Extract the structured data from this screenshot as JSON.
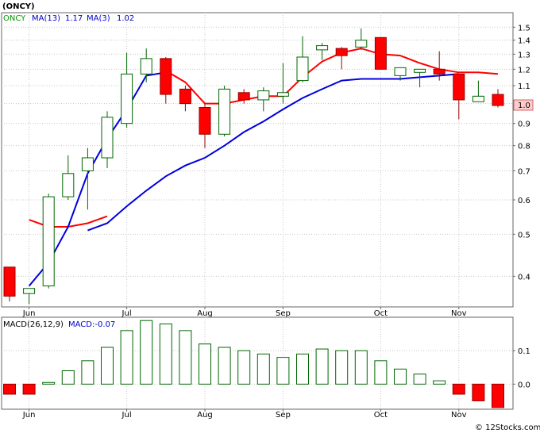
{
  "chart_data": [
    {
      "type": "candlestick",
      "title": "(ONCY)",
      "legend": [
        {
          "label": "ONCY",
          "color": "#009900"
        },
        {
          "label": "MA(13)",
          "value": "1.17",
          "color": "#0000cc"
        },
        {
          "label": "MA(3)",
          "value": "1.02",
          "color": "#0000cc"
        }
      ],
      "y_scale": "log",
      "ylim": [
        0.34,
        1.62
      ],
      "y_ticks": [
        "1.5",
        "1.4",
        "1.3",
        "1.2",
        "1.1",
        "1.0",
        "0.9",
        "0.8",
        "0.7",
        "0.6",
        "0.5",
        "0.4"
      ],
      "x_labels": [
        "Jun",
        "Jul",
        "Aug",
        "Sep",
        "Oct",
        "Nov"
      ],
      "x_label_weeks": [
        1,
        6,
        10,
        14,
        19,
        23
      ],
      "last_price": "1.0",
      "up_color": "#006600",
      "down_color": "#ff0000",
      "weeks": [
        {
          "o": 0.42,
          "h": 0.42,
          "l": 0.35,
          "c": 0.36
        },
        {
          "o": 0.365,
          "h": 0.375,
          "l": 0.345,
          "c": 0.375
        },
        {
          "o": 0.38,
          "h": 0.62,
          "l": 0.375,
          "c": 0.61
        },
        {
          "o": 0.61,
          "h": 0.76,
          "l": 0.6,
          "c": 0.69
        },
        {
          "o": 0.7,
          "h": 0.79,
          "l": 0.57,
          "c": 0.75
        },
        {
          "o": 0.75,
          "h": 0.96,
          "l": 0.71,
          "c": 0.93
        },
        {
          "o": 0.9,
          "h": 1.31,
          "l": 0.88,
          "c": 1.17
        },
        {
          "o": 1.17,
          "h": 1.34,
          "l": 1.12,
          "c": 1.27
        },
        {
          "o": 1.27,
          "h": 1.28,
          "l": 1.0,
          "c": 1.05
        },
        {
          "o": 1.08,
          "h": 1.1,
          "l": 0.96,
          "c": 1.0
        },
        {
          "o": 0.98,
          "h": 1.0,
          "l": 0.79,
          "c": 0.85
        },
        {
          "o": 0.85,
          "h": 1.1,
          "l": 0.84,
          "c": 1.08
        },
        {
          "o": 1.06,
          "h": 1.08,
          "l": 1.0,
          "c": 1.02
        },
        {
          "o": 1.02,
          "h": 1.09,
          "l": 0.96,
          "c": 1.07
        },
        {
          "o": 1.04,
          "h": 1.24,
          "l": 1.0,
          "c": 1.06
        },
        {
          "o": 1.13,
          "h": 1.43,
          "l": 1.12,
          "c": 1.28
        },
        {
          "o": 1.33,
          "h": 1.38,
          "l": 1.26,
          "c": 1.36
        },
        {
          "o": 1.34,
          "h": 1.35,
          "l": 1.2,
          "c": 1.29
        },
        {
          "o": 1.35,
          "h": 1.49,
          "l": 1.33,
          "c": 1.4
        },
        {
          "o": 1.42,
          "h": 1.42,
          "l": 1.2,
          "c": 1.2
        },
        {
          "o": 1.16,
          "h": 1.21,
          "l": 1.13,
          "c": 1.21
        },
        {
          "o": 1.18,
          "h": 1.2,
          "l": 1.09,
          "c": 1.2
        },
        {
          "o": 1.2,
          "h": 1.32,
          "l": 1.13,
          "c": 1.17
        },
        {
          "o": 1.17,
          "h": 1.17,
          "l": 0.92,
          "c": 1.02
        },
        {
          "o": 1.01,
          "h": 1.13,
          "l": 1.01,
          "c": 1.04
        },
        {
          "o": 1.05,
          "h": 1.08,
          "l": 0.98,
          "c": 0.99
        }
      ],
      "ma_red": [
        null,
        0.54,
        0.52,
        0.52,
        0.53,
        0.55,
        null,
        null,
        1.19,
        1.12,
        1.0,
        1.0,
        1.02,
        1.04,
        1.04,
        1.15,
        1.25,
        1.31,
        1.34,
        1.3,
        1.29,
        1.24,
        1.2,
        1.18,
        1.18,
        1.17
      ],
      "ma_blue": [
        null,
        0.38,
        0.43,
        0.52,
        0.69,
        0.83,
        0.97,
        1.16,
        1.18,
        null,
        null,
        null,
        null,
        null,
        null,
        null,
        null,
        null,
        null,
        null,
        null,
        null,
        null,
        null,
        null,
        null
      ],
      "ma_blue_long": [
        null,
        null,
        null,
        null,
        0.51,
        0.53,
        0.58,
        0.63,
        0.68,
        0.72,
        0.75,
        0.8,
        0.86,
        0.91,
        0.97,
        1.03,
        1.08,
        1.13,
        1.14,
        1.14,
        1.14,
        1.15,
        1.16,
        1.17,
        null,
        null
      ]
    },
    {
      "type": "bar",
      "title": "MACD(26,12,9)",
      "value_label": "MACD:-0.07",
      "y_ticks": [
        "0.1",
        "0.0"
      ],
      "ylim": [
        -0.075,
        0.2
      ],
      "x_labels": [
        "Jun",
        "Jul",
        "Aug",
        "Sep",
        "Oct",
        "Nov"
      ],
      "values": [
        -0.03,
        -0.03,
        0.005,
        0.04,
        0.07,
        0.11,
        0.16,
        0.19,
        0.18,
        0.16,
        0.12,
        0.11,
        0.1,
        0.09,
        0.08,
        0.09,
        0.105,
        0.1,
        0.1,
        0.07,
        0.045,
        0.03,
        0.01,
        -0.03,
        -0.05,
        -0.07
      ],
      "up_color": "#006600",
      "down_color": "#ff0000"
    }
  ],
  "footer": {
    "credit": "© 12Stocks.com"
  }
}
